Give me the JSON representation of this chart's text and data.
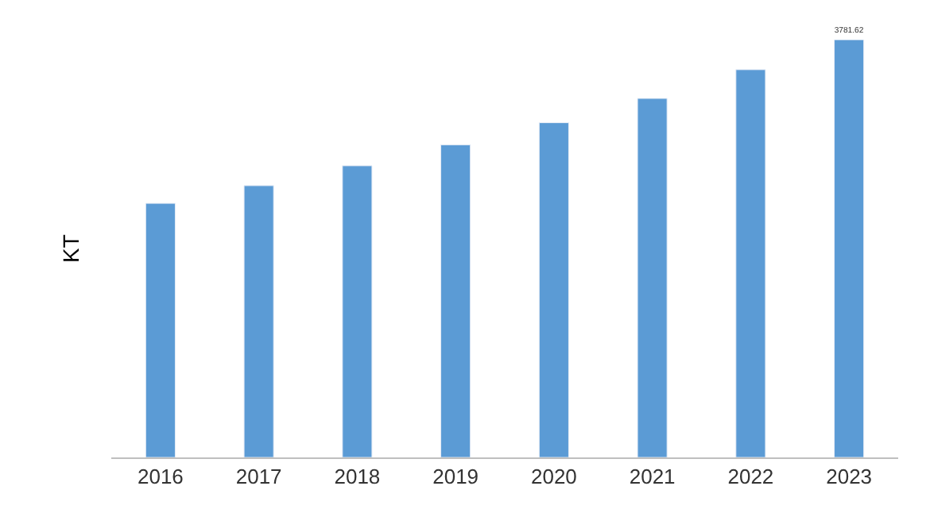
{
  "chart_data": {
    "type": "bar",
    "ylabel": "KT",
    "categories": [
      "2016",
      "2017",
      "2018",
      "2019",
      "2020",
      "2021",
      "2022",
      "2023"
    ],
    "values": [
      2300,
      2460,
      2640,
      2830,
      3030,
      3250,
      3510,
      3781.62
    ],
    "value_labels": [
      null,
      null,
      null,
      null,
      null,
      null,
      null,
      "3781.62"
    ],
    "color": "#5b9bd5"
  }
}
